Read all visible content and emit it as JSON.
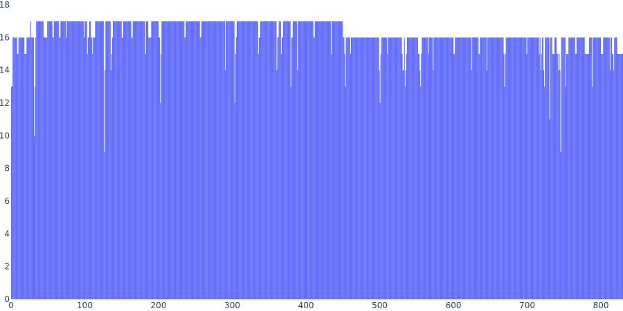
{
  "chart_data": {
    "type": "bar",
    "title": "",
    "xlabel": "",
    "ylabel": "",
    "xlim": [
      0,
      830
    ],
    "ylim": [
      0,
      18
    ],
    "grid": false,
    "bar_color": "#636efa",
    "x_ticks": [
      "0",
      "100",
      "200",
      "300",
      "400",
      "500",
      "600",
      "700",
      "800"
    ],
    "y_ticks": [
      "0",
      "2",
      "4",
      "6",
      "8",
      "10",
      "12",
      "14",
      "16",
      "18"
    ],
    "segments": [
      [
        0,
        13
      ],
      [
        2,
        16
      ],
      [
        8,
        15
      ],
      [
        10,
        16
      ],
      [
        18,
        15
      ],
      [
        21,
        16
      ],
      [
        26,
        17
      ],
      [
        27,
        16
      ],
      [
        31,
        10
      ],
      [
        32,
        13
      ],
      [
        33,
        16
      ],
      [
        34,
        17
      ],
      [
        44,
        16
      ],
      [
        49,
        17
      ],
      [
        56,
        16
      ],
      [
        58,
        17
      ],
      [
        65,
        16
      ],
      [
        67,
        17
      ],
      [
        75,
        16
      ],
      [
        76,
        17
      ],
      [
        99,
        16
      ],
      [
        100,
        17
      ],
      [
        103,
        15
      ],
      [
        104,
        16
      ],
      [
        106,
        17
      ],
      [
        108,
        16
      ],
      [
        110,
        15
      ],
      [
        111,
        16
      ],
      [
        114,
        17
      ],
      [
        126,
        9
      ],
      [
        127,
        14
      ],
      [
        128,
        17
      ],
      [
        135,
        14
      ],
      [
        136,
        15
      ],
      [
        137,
        16
      ],
      [
        138,
        17
      ],
      [
        150,
        16
      ],
      [
        152,
        17
      ],
      [
        163,
        16
      ],
      [
        165,
        17
      ],
      [
        182,
        15
      ],
      [
        183,
        17
      ],
      [
        186,
        16
      ],
      [
        190,
        17
      ],
      [
        200,
        16
      ],
      [
        202,
        12
      ],
      [
        203,
        15
      ],
      [
        204,
        17
      ],
      [
        235,
        16
      ],
      [
        237,
        17
      ],
      [
        256,
        16
      ],
      [
        258,
        17
      ],
      [
        290,
        14
      ],
      [
        291,
        17
      ],
      [
        303,
        12
      ],
      [
        304,
        15
      ],
      [
        305,
        16
      ],
      [
        306,
        17
      ],
      [
        335,
        15
      ],
      [
        336,
        16
      ],
      [
        338,
        17
      ],
      [
        360,
        14
      ],
      [
        361,
        16
      ],
      [
        363,
        17
      ],
      [
        366,
        15
      ],
      [
        367,
        16
      ],
      [
        369,
        17
      ],
      [
        379,
        13
      ],
      [
        380,
        16
      ],
      [
        382,
        17
      ],
      [
        388,
        14
      ],
      [
        389,
        17
      ],
      [
        410,
        16
      ],
      [
        412,
        17
      ],
      [
        434,
        15
      ],
      [
        435,
        17
      ],
      [
        450,
        16
      ],
      [
        452,
        15
      ],
      [
        453,
        13
      ],
      [
        454,
        16
      ],
      [
        460,
        15
      ],
      [
        461,
        16
      ],
      [
        499,
        14
      ],
      [
        500,
        12
      ],
      [
        501,
        15
      ],
      [
        502,
        16
      ],
      [
        510,
        15
      ],
      [
        511,
        16
      ],
      [
        530,
        15
      ],
      [
        531,
        14
      ],
      [
        533,
        16
      ],
      [
        534,
        13
      ],
      [
        535,
        14
      ],
      [
        536,
        15
      ],
      [
        537,
        16
      ],
      [
        552,
        15
      ],
      [
        554,
        14
      ],
      [
        555,
        13
      ],
      [
        556,
        15
      ],
      [
        557,
        16
      ],
      [
        566,
        15
      ],
      [
        567,
        16
      ],
      [
        572,
        14
      ],
      [
        573,
        16
      ],
      [
        600,
        15
      ],
      [
        602,
        16
      ],
      [
        624,
        14
      ],
      [
        625,
        16
      ],
      [
        634,
        15
      ],
      [
        636,
        16
      ],
      [
        645,
        14
      ],
      [
        646,
        16
      ],
      [
        668,
        15
      ],
      [
        669,
        13
      ],
      [
        670,
        15
      ],
      [
        671,
        16
      ],
      [
        699,
        15
      ],
      [
        700,
        16
      ],
      [
        716,
        15
      ],
      [
        717,
        16
      ],
      [
        718,
        14
      ],
      [
        719,
        15
      ],
      [
        720,
        16
      ],
      [
        722,
        14
      ],
      [
        723,
        13
      ],
      [
        724,
        16
      ],
      [
        730,
        11
      ],
      [
        731,
        16
      ],
      [
        734,
        15
      ],
      [
        737,
        16
      ],
      [
        740,
        15
      ],
      [
        742,
        14
      ],
      [
        743,
        15
      ],
      [
        744,
        14
      ],
      [
        745,
        9
      ],
      [
        746,
        16
      ],
      [
        752,
        13
      ],
      [
        753,
        15
      ],
      [
        756,
        16
      ],
      [
        765,
        15
      ],
      [
        767,
        16
      ],
      [
        778,
        15
      ],
      [
        784,
        16
      ],
      [
        788,
        13
      ],
      [
        789,
        16
      ],
      [
        800,
        15
      ],
      [
        803,
        16
      ],
      [
        812,
        14
      ],
      [
        813,
        16
      ],
      [
        815,
        15
      ],
      [
        817,
        14
      ],
      [
        818,
        16
      ],
      [
        822,
        15
      ],
      [
        830,
        15
      ]
    ]
  }
}
